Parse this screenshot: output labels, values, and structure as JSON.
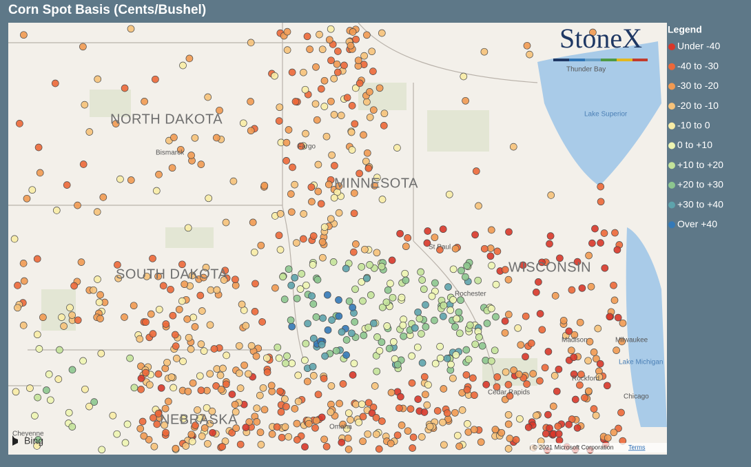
{
  "header": {
    "title": "Corn Spot Basis (Cents/Bushel)"
  },
  "legend": {
    "title": "Legend",
    "items": [
      {
        "label": "Under -40",
        "color": "#d8372a"
      },
      {
        "label": "-40 to -30",
        "color": "#ec6839"
      },
      {
        "label": "-30 to -20",
        "color": "#f19a52"
      },
      {
        "label": "-20 to -10",
        "color": "#f6c27a"
      },
      {
        "label": "-10 to 0",
        "color": "#f8eca6"
      },
      {
        "label": "0 to +10",
        "color": "#eef5b2"
      },
      {
        "label": "+10 to +20",
        "color": "#c4e39a"
      },
      {
        "label": "+20 to +30",
        "color": "#8dc68f"
      },
      {
        "label": "+30 to +40",
        "color": "#5ea3ac"
      },
      {
        "label": "Over +40",
        "color": "#3479b7"
      }
    ]
  },
  "map": {
    "labels": [
      "NORTH DAKOTA",
      "MINNESOTA",
      "SOUTH DAKOTA",
      "WISCONSIN",
      "NEBRASKA",
      "Bismarck",
      "Fargo",
      "Thunder Bay",
      "Lake Superior",
      "St Paul",
      "Rochester",
      "Madison",
      "Milwaukee",
      "Lake Michigan",
      "Rockford",
      "Chicago",
      "Cedar Rapids",
      "Omaha",
      "Cheyenne"
    ],
    "logo": "StoneX",
    "attribution": "Bing",
    "copyright": "© 2021 Microsoft Corporation",
    "terms": "Terms"
  }
}
